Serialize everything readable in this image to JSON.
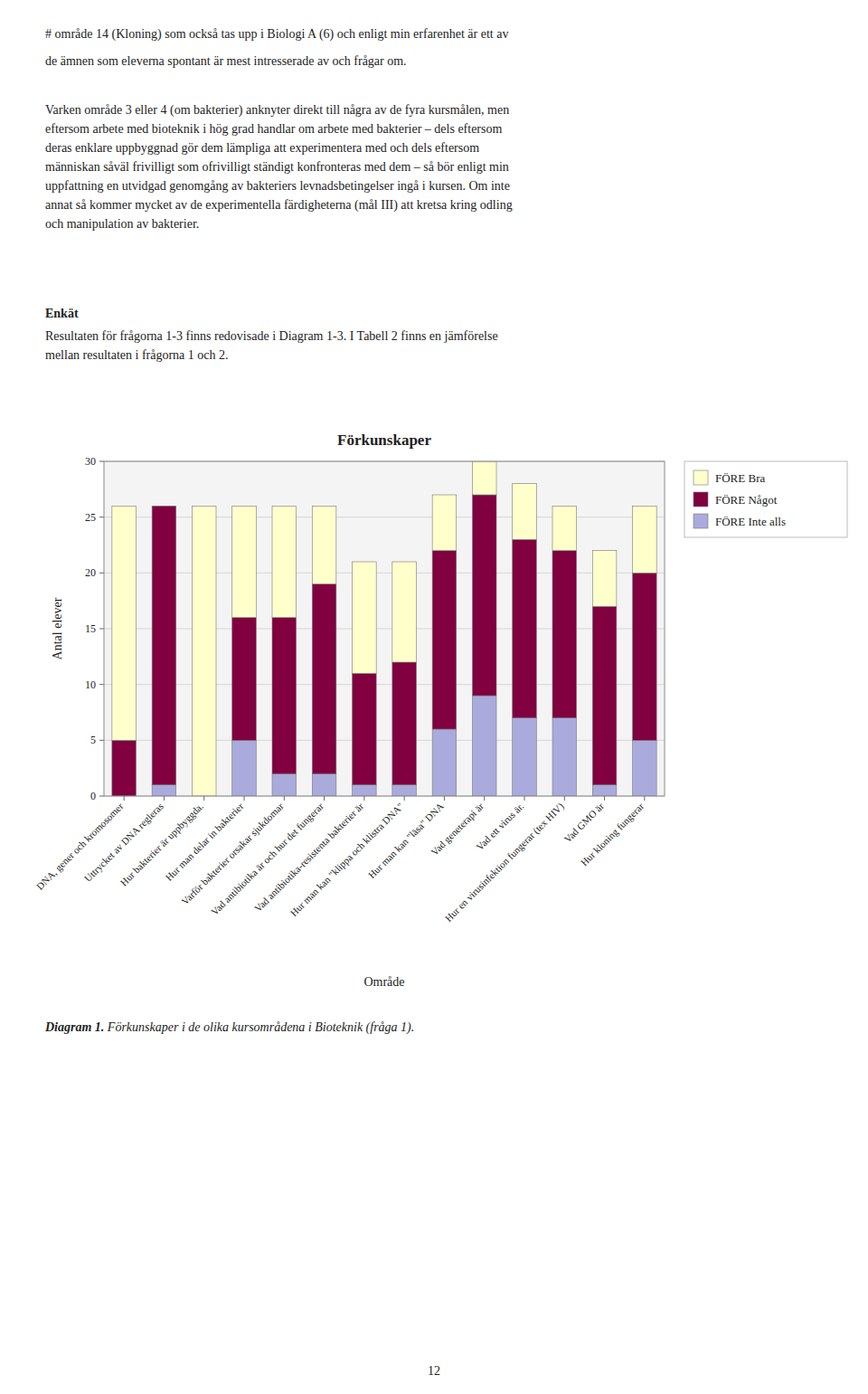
{
  "page": {
    "lines": [
      "# område 14 (Kloning) som också tas upp i Biologi A (6) och enligt min erfarenhet är ett av",
      "de ämnen som eleverna spontant är mest intresserade av och frågar om."
    ],
    "paragraph": [
      "Varken område 3 eller 4 (om bakterier) anknyter direkt till några av de fyra kursmålen, men",
      "eftersom arbete med bioteknik i hög grad handlar om arbete med bakterier – dels eftersom",
      "deras enklare uppbyggnad gör dem lämpliga att experimentera med och dels eftersom",
      "människan såväl frivilligt som ofrivilligt ständigt konfronteras med dem – så bör enligt min",
      "uppfattning en utvidgad genomgång av bakteriers levnadsbetingelser ingå i kursen. Om inte",
      "annat så kommer mycket av de experimentella färdigheterna (mål III) att kretsa kring odling",
      "och manipulation av bakterier."
    ],
    "heading": "Enkät",
    "body": [
      "Resultaten för frågorna 1-3 finns redovisade i Diagram 1-3. I Tabell 2 finns en jämförelse",
      "mellan resultaten i frågorna 1 och 2."
    ],
    "caption_bold": "Diagram 1.",
    "caption_italic": " Förkunskaper i de olika kursområdena i Bioteknik (fråga 1).",
    "page_number": "12"
  },
  "chart_data": {
    "type": "bar",
    "stacked": true,
    "title": "Förkunskaper",
    "xlabel": "Område",
    "ylabel": "Antal elever",
    "categories": [
      "DNA, gener och kromosomer",
      "Uttrycket av DNA regleras",
      "Hur bakterier är uppbyggda.",
      "Hur man delar in bakterier",
      "Varför bakterier orsakar sjukdomar",
      "Vad antibiotika är och hur det fungerar",
      "Vad antibiotika-resistenta bakterier är",
      "Hur man kan \"klippa och klistra DNA\"",
      "Hur man kan \"läsa\" DNA",
      "Vad geneterapi är",
      "Vad ett virus är.",
      "Hur en virusinfektion fungerar (tex HIV)",
      "Vad GMO är",
      "Hur kloning fungerar"
    ],
    "series": [
      {
        "name": "FÖRE Inte alls",
        "color": "#AAAADD",
        "values": [
          0,
          1,
          0,
          5,
          2,
          2,
          1,
          1,
          6,
          9,
          7,
          7,
          1,
          5
        ]
      },
      {
        "name": "FÖRE Något",
        "color": "#800040",
        "values": [
          5,
          25,
          0,
          11,
          14,
          17,
          10,
          11,
          16,
          18,
          16,
          15,
          16,
          15
        ]
      },
      {
        "name": "FÖRE Bra",
        "color": "#FFFFCC",
        "values": [
          21,
          0,
          26,
          10,
          10,
          7,
          10,
          9,
          5,
          3,
          5,
          4,
          5,
          6
        ]
      }
    ],
    "ylim": [
      0,
      30
    ],
    "yticks": [
      0,
      5,
      10,
      15,
      20,
      25,
      30
    ],
    "grid": true,
    "legend": "right"
  }
}
